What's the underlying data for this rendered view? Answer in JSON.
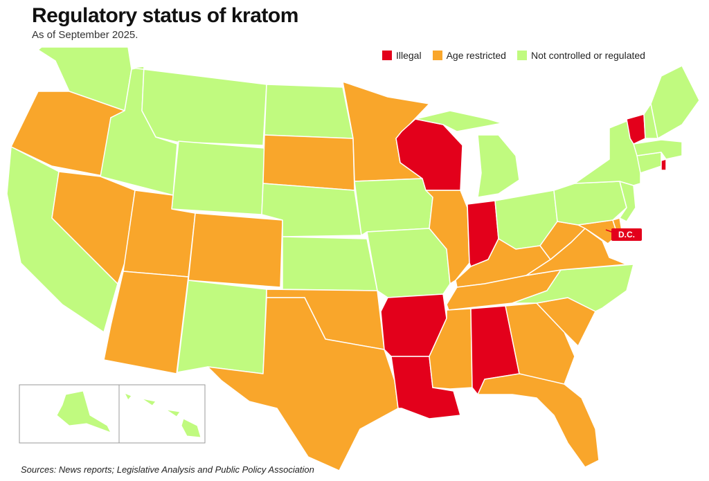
{
  "title": "Regulatory status of kratom",
  "subtitle": "As of September 2025.",
  "legend": [
    {
      "key": "illegal",
      "label": "Illegal",
      "color": "#e3001b"
    },
    {
      "key": "age",
      "label": "Age restricted",
      "color": "#f9a62b"
    },
    {
      "key": "none",
      "label": "Not controlled or regulated",
      "color": "#c0fa7f"
    }
  ],
  "colors": {
    "illegal": "#e3001b",
    "age": "#f9a62b",
    "none": "#c0fa7f",
    "border": "#ffffff",
    "inset_border": "#999999"
  },
  "dc": {
    "label": "D.C.",
    "status": "illegal"
  },
  "states": [
    {
      "name": "Washington",
      "status": "none"
    },
    {
      "name": "Oregon",
      "status": "age"
    },
    {
      "name": "California",
      "status": "none"
    },
    {
      "name": "Idaho",
      "status": "none"
    },
    {
      "name": "Nevada",
      "status": "age"
    },
    {
      "name": "Montana",
      "status": "none"
    },
    {
      "name": "Wyoming",
      "status": "none"
    },
    {
      "name": "Utah",
      "status": "age"
    },
    {
      "name": "Arizona",
      "status": "age"
    },
    {
      "name": "Colorado",
      "status": "age"
    },
    {
      "name": "New Mexico",
      "status": "none"
    },
    {
      "name": "North Dakota",
      "status": "none"
    },
    {
      "name": "South Dakota",
      "status": "age"
    },
    {
      "name": "Nebraska",
      "status": "none"
    },
    {
      "name": "Kansas",
      "status": "none"
    },
    {
      "name": "Oklahoma",
      "status": "age"
    },
    {
      "name": "Texas",
      "status": "age"
    },
    {
      "name": "Minnesota",
      "status": "age"
    },
    {
      "name": "Iowa",
      "status": "none"
    },
    {
      "name": "Missouri",
      "status": "none"
    },
    {
      "name": "Arkansas",
      "status": "illegal"
    },
    {
      "name": "Louisiana",
      "status": "illegal"
    },
    {
      "name": "Wisconsin",
      "status": "illegal"
    },
    {
      "name": "Illinois",
      "status": "age"
    },
    {
      "name": "Michigan",
      "status": "none"
    },
    {
      "name": "Indiana",
      "status": "illegal"
    },
    {
      "name": "Ohio",
      "status": "none"
    },
    {
      "name": "Kentucky",
      "status": "age"
    },
    {
      "name": "Tennessee",
      "status": "age"
    },
    {
      "name": "Mississippi",
      "status": "age"
    },
    {
      "name": "Alabama",
      "status": "illegal"
    },
    {
      "name": "Georgia",
      "status": "age"
    },
    {
      "name": "Florida",
      "status": "age"
    },
    {
      "name": "South Carolina",
      "status": "age"
    },
    {
      "name": "North Carolina",
      "status": "none"
    },
    {
      "name": "Virginia",
      "status": "age"
    },
    {
      "name": "West Virginia",
      "status": "age"
    },
    {
      "name": "Maryland",
      "status": "age"
    },
    {
      "name": "Delaware",
      "status": "age"
    },
    {
      "name": "Pennsylvania",
      "status": "none"
    },
    {
      "name": "New Jersey",
      "status": "none"
    },
    {
      "name": "New York",
      "status": "none"
    },
    {
      "name": "Connecticut",
      "status": "none"
    },
    {
      "name": "Rhode Island",
      "status": "illegal"
    },
    {
      "name": "Massachusetts",
      "status": "none"
    },
    {
      "name": "Vermont",
      "status": "illegal"
    },
    {
      "name": "New Hampshire",
      "status": "none"
    },
    {
      "name": "Maine",
      "status": "none"
    },
    {
      "name": "Alaska",
      "status": "none"
    },
    {
      "name": "Hawaii",
      "status": "none"
    }
  ],
  "source": "Sources: News reports; Legislative Analysis and Public Policy Association"
}
